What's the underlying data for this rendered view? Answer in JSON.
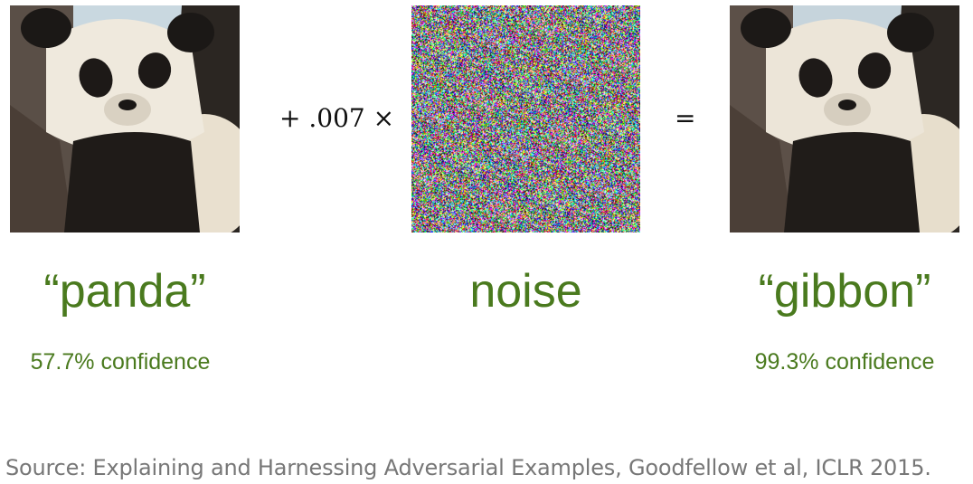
{
  "equation": {
    "operator_times": "+ .007 ×",
    "operator_equals": "="
  },
  "images": {
    "left": "panda-photo",
    "middle": "noise-pattern",
    "right": "panda-photo-perturbed"
  },
  "labels": {
    "left": "“panda”",
    "middle": "noise",
    "right": "“gibbon”"
  },
  "confidence": {
    "left": "57.7% confidence",
    "right": "99.3% confidence"
  },
  "source": "Source: Explaining and Harnessing Adversarial Examples, Goodfellow et al, ICLR 2015.",
  "colors": {
    "label_green": "#4a7a1e",
    "source_gray": "#777777"
  }
}
